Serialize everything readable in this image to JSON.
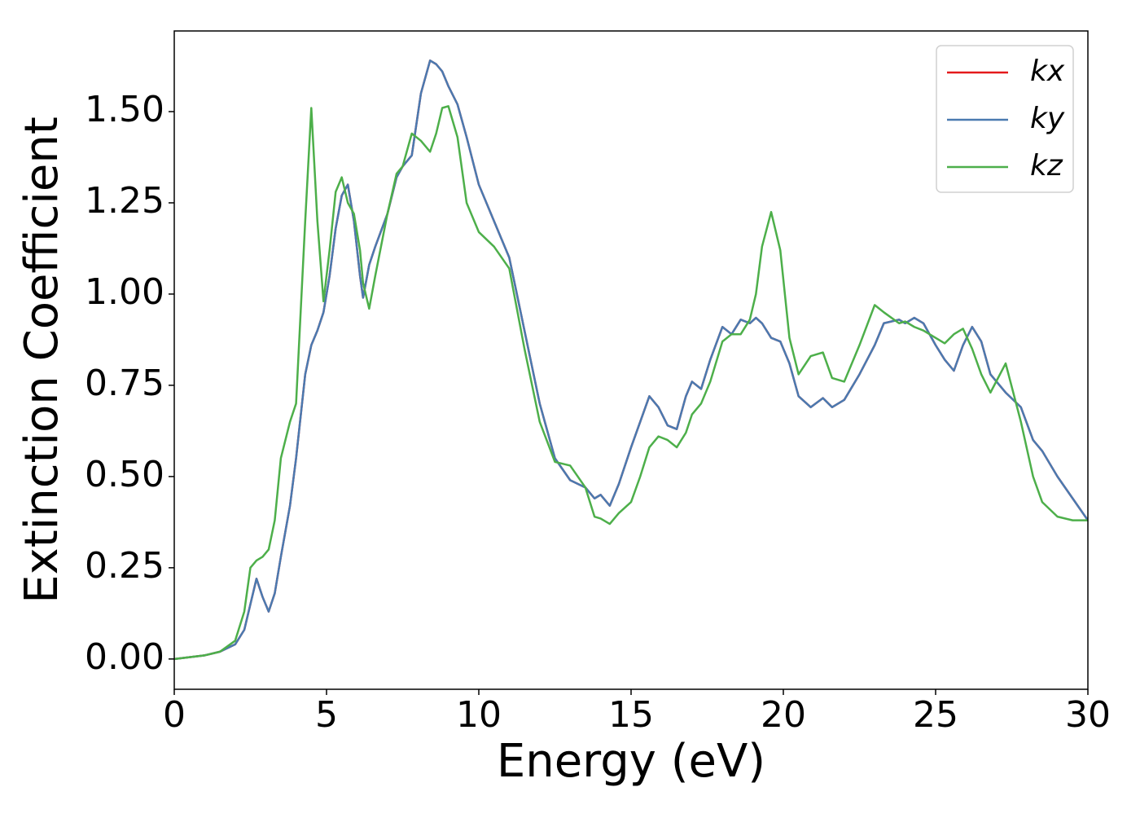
{
  "chart_data": {
    "type": "line",
    "xlabel": "Energy (eV)",
    "ylabel": "Extinction Coefficient",
    "x": [
      0,
      1,
      1.5,
      2,
      2.3,
      2.5,
      2.7,
      2.9,
      3.1,
      3.3,
      3.5,
      3.8,
      4.0,
      4.3,
      4.5,
      4.7,
      4.9,
      5.1,
      5.3,
      5.5,
      5.7,
      5.9,
      6.1,
      6.2,
      6.4,
      6.6,
      7.0,
      7.3,
      7.5,
      7.8,
      8.1,
      8.4,
      8.6,
      8.8,
      9.0,
      9.3,
      9.6,
      10,
      10.5,
      11,
      11.5,
      12,
      12.5,
      13,
      13.5,
      13.8,
      14,
      14.3,
      14.6,
      15,
      15.3,
      15.6,
      15.9,
      16.2,
      16.5,
      16.8,
      17,
      17.3,
      17.6,
      18,
      18.3,
      18.6,
      18.9,
      19.1,
      19.3,
      19.6,
      19.9,
      20.2,
      20.5,
      20.9,
      21.3,
      21.6,
      22,
      22.5,
      23,
      23.3,
      23.8,
      24,
      24.3,
      24.6,
      25,
      25.3,
      25.6,
      25.9,
      26.2,
      26.5,
      26.8,
      27.3,
      27.8,
      28.2,
      28.5,
      29,
      29.5,
      30
    ],
    "series": [
      {
        "name": "kx",
        "color": "#e41a1c",
        "values": [
          0,
          0.01,
          0.02,
          0.04,
          0.08,
          0.15,
          0.22,
          0.17,
          0.13,
          0.18,
          0.28,
          0.42,
          0.55,
          0.78,
          0.86,
          0.9,
          0.95,
          1.05,
          1.18,
          1.27,
          1.3,
          1.2,
          1.05,
          0.99,
          1.08,
          1.13,
          1.22,
          1.32,
          1.35,
          1.38,
          1.55,
          1.64,
          1.63,
          1.61,
          1.57,
          1.52,
          1.43,
          1.3,
          1.2,
          1.1,
          0.9,
          0.7,
          0.55,
          0.49,
          0.47,
          0.44,
          0.45,
          0.42,
          0.48,
          0.58,
          0.65,
          0.72,
          0.69,
          0.64,
          0.63,
          0.72,
          0.76,
          0.74,
          0.82,
          0.91,
          0.89,
          0.93,
          0.92,
          0.935,
          0.92,
          0.88,
          0.87,
          0.81,
          0.72,
          0.69,
          0.715,
          0.69,
          0.71,
          0.78,
          0.86,
          0.92,
          0.93,
          0.92,
          0.935,
          0.92,
          0.86,
          0.82,
          0.79,
          0.86,
          0.91,
          0.87,
          0.78,
          0.73,
          0.69,
          0.6,
          0.57,
          0.5,
          0.44,
          0.38
        ]
      },
      {
        "name": "ky",
        "color": "#4a7ab0",
        "values": [
          0,
          0.01,
          0.02,
          0.04,
          0.08,
          0.15,
          0.22,
          0.17,
          0.13,
          0.18,
          0.28,
          0.42,
          0.55,
          0.78,
          0.86,
          0.9,
          0.95,
          1.05,
          1.18,
          1.27,
          1.3,
          1.2,
          1.05,
          0.99,
          1.08,
          1.13,
          1.22,
          1.32,
          1.35,
          1.38,
          1.55,
          1.64,
          1.63,
          1.61,
          1.57,
          1.52,
          1.43,
          1.3,
          1.2,
          1.1,
          0.9,
          0.7,
          0.55,
          0.49,
          0.47,
          0.44,
          0.45,
          0.42,
          0.48,
          0.58,
          0.65,
          0.72,
          0.69,
          0.64,
          0.63,
          0.72,
          0.76,
          0.74,
          0.82,
          0.91,
          0.89,
          0.93,
          0.92,
          0.935,
          0.92,
          0.88,
          0.87,
          0.81,
          0.72,
          0.69,
          0.715,
          0.69,
          0.71,
          0.78,
          0.86,
          0.92,
          0.93,
          0.92,
          0.935,
          0.92,
          0.86,
          0.82,
          0.79,
          0.86,
          0.91,
          0.87,
          0.78,
          0.73,
          0.69,
          0.6,
          0.57,
          0.5,
          0.44,
          0.38
        ]
      },
      {
        "name": "kz",
        "color": "#4daf4a",
        "values": [
          0,
          0.01,
          0.02,
          0.05,
          0.13,
          0.25,
          0.27,
          0.28,
          0.3,
          0.38,
          0.55,
          0.65,
          0.7,
          1.2,
          1.51,
          1.2,
          0.98,
          1.12,
          1.28,
          1.32,
          1.25,
          1.22,
          1.12,
          1.03,
          0.96,
          1.05,
          1.22,
          1.33,
          1.35,
          1.44,
          1.42,
          1.39,
          1.44,
          1.51,
          1.515,
          1.43,
          1.25,
          1.17,
          1.13,
          1.07,
          0.85,
          0.65,
          0.54,
          0.53,
          0.47,
          0.39,
          0.385,
          0.37,
          0.4,
          0.43,
          0.5,
          0.58,
          0.61,
          0.6,
          0.58,
          0.62,
          0.67,
          0.7,
          0.76,
          0.87,
          0.89,
          0.89,
          0.93,
          1.0,
          1.13,
          1.225,
          1.12,
          0.88,
          0.78,
          0.83,
          0.84,
          0.77,
          0.76,
          0.86,
          0.97,
          0.95,
          0.92,
          0.925,
          0.91,
          0.9,
          0.88,
          0.865,
          0.89,
          0.905,
          0.85,
          0.78,
          0.73,
          0.81,
          0.65,
          0.5,
          0.43,
          0.39,
          0.38,
          0.38
        ]
      }
    ],
    "xlim": [
      0,
      30
    ],
    "xticks": [
      0,
      5,
      10,
      15,
      20,
      25,
      30
    ],
    "ylim": [
      -0.083,
      1.721
    ],
    "yticks": [
      {
        "value": 0,
        "label": "0.00"
      },
      {
        "value": 0.25,
        "label": "0.25"
      },
      {
        "value": 0.5,
        "label": "0.50"
      },
      {
        "value": 0.75,
        "label": "0.75"
      },
      {
        "value": 1,
        "label": "1.00"
      },
      {
        "value": 1.25,
        "label": "1.25"
      },
      {
        "value": 1.5,
        "label": "1.50"
      }
    ],
    "legend": "upper right",
    "grid": false
  }
}
